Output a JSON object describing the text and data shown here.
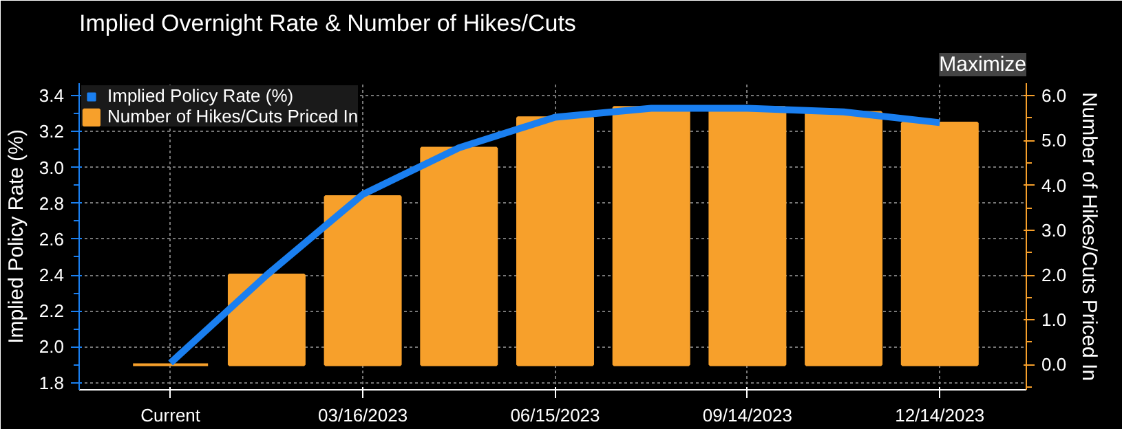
{
  "chart_data": {
    "type": "bar",
    "title": "Implied Overnight Rate & Number of Hikes/Cuts",
    "annotations": [
      "Maximize"
    ],
    "categories": [
      "Current",
      null,
      "03/16/2023",
      null,
      "06/15/2023",
      null,
      "09/14/2023",
      null,
      "12/14/2023"
    ],
    "series": [
      {
        "name": "Implied Policy Rate (%)",
        "type": "line",
        "color": "#1a7ff0",
        "values": [
          1.91,
          2.4,
          2.85,
          3.11,
          3.28,
          3.33,
          3.33,
          3.31,
          3.25
        ]
      },
      {
        "name": "Number of Hikes/Cuts Priced In",
        "type": "bar",
        "axis": "y2",
        "color": "#f7a02b",
        "values": [
          0.0,
          2.0,
          3.75,
          4.83,
          5.51,
          5.74,
          5.74,
          5.63,
          5.39
        ]
      }
    ],
    "ylabel": "Implied Policy Rate (%)",
    "y2label": "Number of Hikes/Cuts Priced In",
    "ylim": [
      1.76,
      3.47
    ],
    "yticks": [
      1.8,
      {
        "value": 2.0,
        "label": "2.0"
      },
      2.2,
      2.4,
      2.6,
      2.8,
      {
        "value": 3.0,
        "label": "3.0"
      },
      3.2,
      3.4
    ],
    "y2lim": [
      -0.56,
      6.28
    ],
    "y2ticks": [
      {
        "value": 0,
        "label": "0.0"
      },
      {
        "value": 1,
        "label": "1.0"
      },
      {
        "value": 2,
        "label": "2.0"
      },
      {
        "value": 3,
        "label": "3.0"
      },
      {
        "value": 4,
        "label": "4.0"
      },
      {
        "value": 5,
        "label": "5.0"
      },
      {
        "value": 6,
        "label": "6.0"
      }
    ],
    "grid": true,
    "legend": "top left",
    "line_style": "solid"
  }
}
